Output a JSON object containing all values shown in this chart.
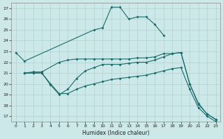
{
  "xlabel": "Humidex (Indice chaleur)",
  "bg_color": "#cde8e8",
  "grid_color": "#afd0d0",
  "line_color": "#1a6b6b",
  "xlim": [
    -0.5,
    23.5
  ],
  "ylim": [
    16.5,
    27.5
  ],
  "yticks": [
    17,
    18,
    19,
    20,
    21,
    22,
    23,
    24,
    25,
    26,
    27
  ],
  "xticks": [
    0,
    1,
    2,
    3,
    4,
    5,
    6,
    7,
    8,
    9,
    10,
    11,
    12,
    13,
    14,
    15,
    16,
    17,
    18,
    19,
    20,
    21,
    22,
    23
  ],
  "lines": [
    {
      "comment": "Top arc line: starts at 0,22.9; 1,22.1; then jumps to 9,25; 10,25; 11,27.1; 12,27.1; 13,26; 14,26.2; 15,26.2; 16,25.5; 17,24.5",
      "x": [
        0,
        1,
        9,
        10,
        11,
        12,
        13,
        14,
        15,
        16,
        17
      ],
      "y": [
        22.9,
        22.1,
        25.0,
        25.2,
        27.1,
        27.1,
        26.0,
        26.2,
        26.2,
        25.5,
        24.5
      ]
    },
    {
      "x": [
        1,
        2,
        3,
        5,
        6,
        7,
        8,
        9,
        10,
        11,
        12,
        13,
        14,
        15,
        16,
        17,
        18,
        19,
        20,
        21,
        22,
        23
      ],
      "y": [
        21.0,
        21.1,
        21.1,
        22.0,
        22.2,
        22.3,
        22.3,
        22.3,
        22.3,
        22.3,
        22.3,
        22.3,
        22.4,
        22.4,
        22.5,
        22.8,
        22.8,
        22.9,
        20.0,
        18.2,
        17.2,
        16.7
      ]
    },
    {
      "x": [
        1,
        2,
        3,
        4,
        5,
        6,
        7,
        8,
        9,
        10,
        11,
        12,
        13,
        14,
        15,
        16,
        17,
        18,
        19,
        20,
        21,
        22,
        23
      ],
      "y": [
        21.0,
        21.0,
        21.0,
        19.9,
        19.0,
        19.5,
        20.5,
        21.2,
        21.5,
        21.8,
        21.8,
        21.8,
        21.9,
        22.0,
        22.0,
        22.2,
        22.5,
        22.8,
        22.9,
        20.0,
        18.1,
        17.2,
        16.7
      ]
    },
    {
      "x": [
        1,
        2,
        3,
        4,
        5,
        6,
        7,
        8,
        9,
        10,
        11,
        12,
        13,
        14,
        15,
        16,
        17,
        18,
        19,
        20,
        21,
        22,
        23
      ],
      "y": [
        21.0,
        21.0,
        21.0,
        20.0,
        19.1,
        19.1,
        19.5,
        19.8,
        20.0,
        20.2,
        20.4,
        20.5,
        20.6,
        20.7,
        20.8,
        21.0,
        21.2,
        21.4,
        21.5,
        19.5,
        17.8,
        17.0,
        16.5
      ]
    }
  ]
}
